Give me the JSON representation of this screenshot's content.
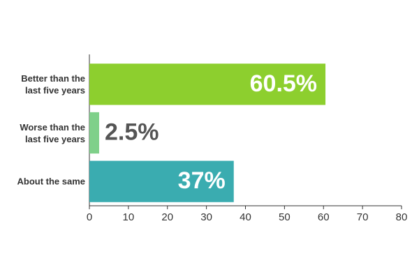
{
  "chart_data": {
    "type": "bar",
    "orientation": "horizontal",
    "categories": [
      "Better than the last five years",
      "Worse than the last five years",
      "About the same"
    ],
    "values": [
      60.5,
      2.5,
      37
    ],
    "value_labels": [
      "60.5%",
      "2.5%",
      "37%"
    ],
    "colors": [
      "#8dcf2e",
      "#7fd08a",
      "#3aacb0"
    ],
    "xlim": [
      0,
      80
    ],
    "xticks": [
      0,
      10,
      20,
      30,
      40,
      50,
      60,
      70,
      80
    ]
  }
}
